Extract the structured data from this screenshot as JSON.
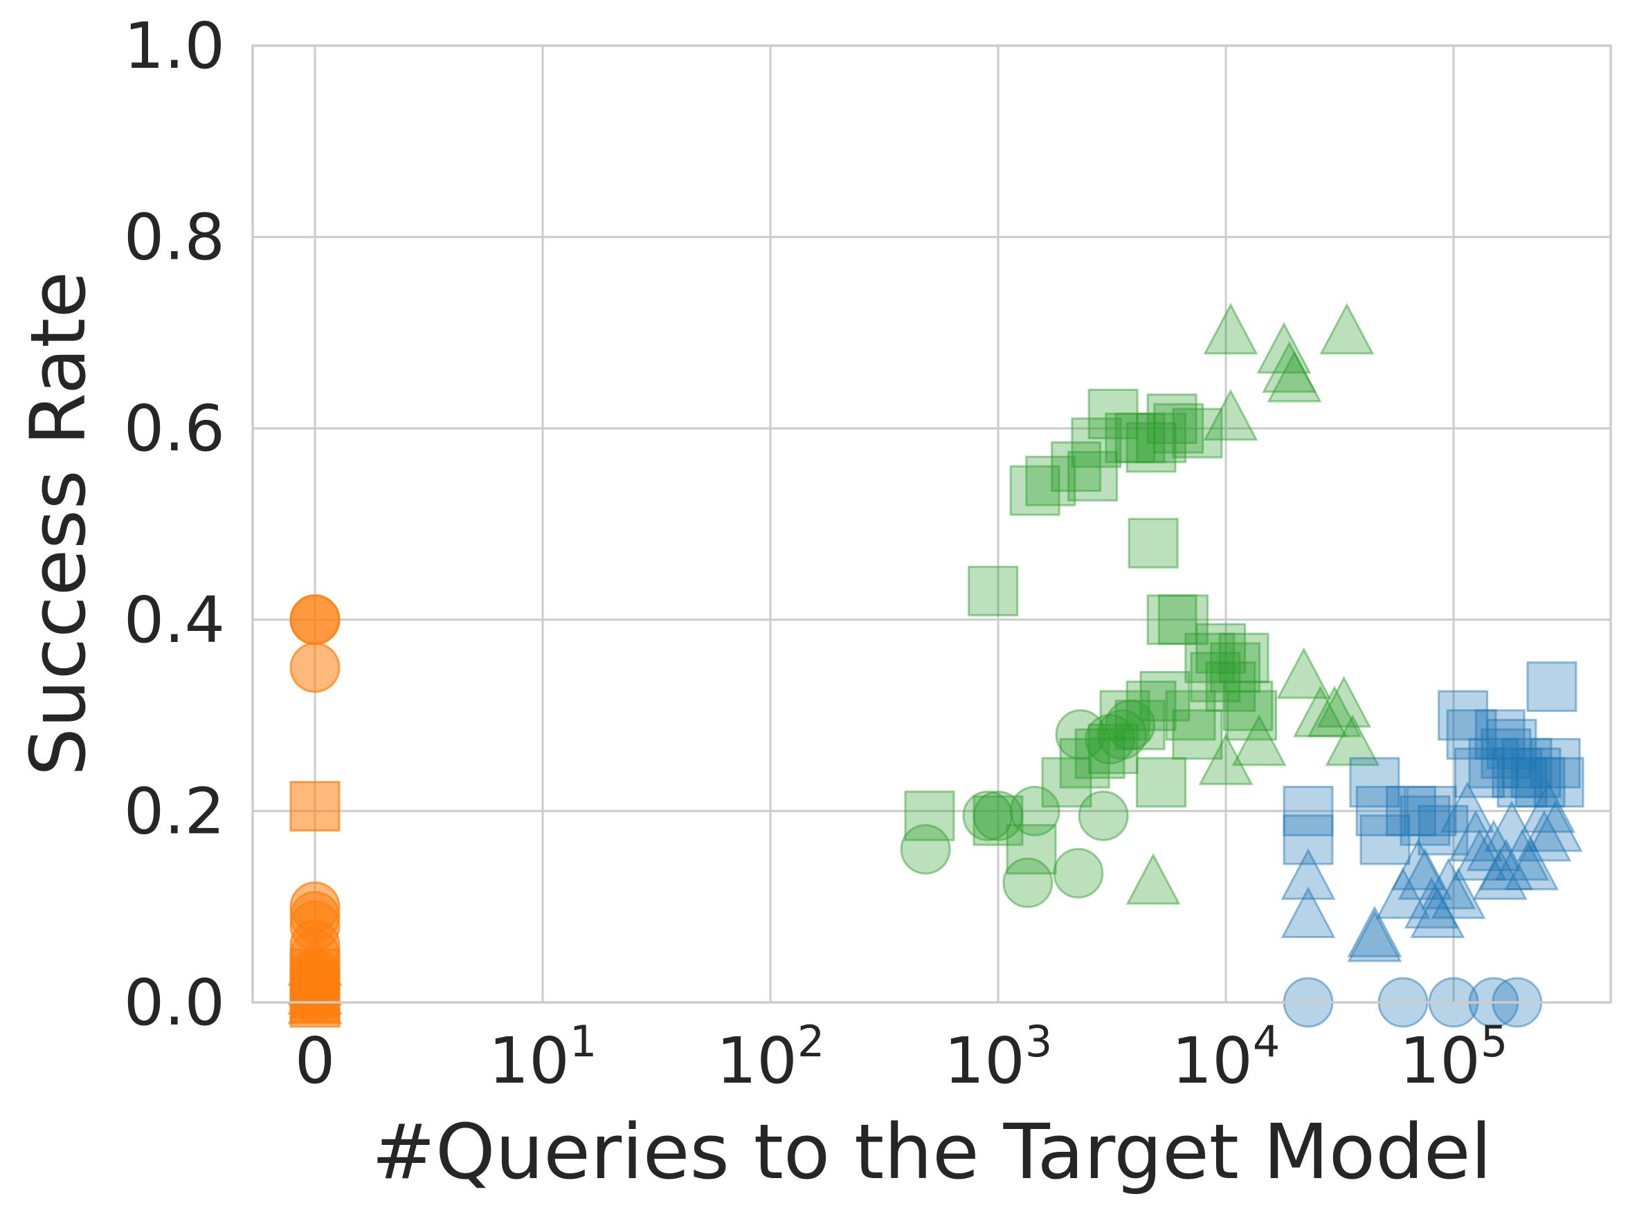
{
  "chart_data": {
    "type": "scatter",
    "title": "",
    "xlabel": "#Queries to the Target Model",
    "ylabel": "Success Rate",
    "x_scale": "symlog",
    "ylim": [
      0.0,
      1.0
    ],
    "grid": true,
    "x_ticks": [
      {
        "value": 0,
        "base": "0",
        "exp": ""
      },
      {
        "value": 10,
        "base": "10",
        "exp": "1"
      },
      {
        "value": 100,
        "base": "10",
        "exp": "2"
      },
      {
        "value": 1000,
        "base": "10",
        "exp": "3"
      },
      {
        "value": 10000,
        "base": "10",
        "exp": "4"
      },
      {
        "value": 100000,
        "base": "10",
        "exp": "5"
      }
    ],
    "y_ticks": [
      {
        "value": 0.0,
        "label": "0.0"
      },
      {
        "value": 0.2,
        "label": "0.2"
      },
      {
        "value": 0.4,
        "label": "0.4"
      },
      {
        "value": 0.6,
        "label": "0.6"
      },
      {
        "value": 0.8,
        "label": "0.8"
      },
      {
        "value": 1.0,
        "label": "1.0"
      }
    ],
    "colors": {
      "orange": "#ff7f0e",
      "green": "#2ca02c",
      "blue": "#1f77b4"
    },
    "series": [
      {
        "color": "orange",
        "marker": "circle",
        "points": [
          [
            0,
            0.4
          ],
          [
            0,
            0.4
          ],
          [
            0,
            0.35
          ],
          [
            0,
            0.1
          ],
          [
            0,
            0.09
          ],
          [
            0,
            0.08
          ],
          [
            0,
            0.06
          ],
          [
            0,
            0.05
          ],
          [
            0,
            0.03
          ],
          [
            0,
            0.02
          ],
          [
            0,
            0.01
          ],
          [
            0,
            0.005
          ]
        ]
      },
      {
        "color": "orange",
        "marker": "square",
        "points": [
          [
            0,
            0.205
          ],
          [
            0,
            0.03
          ],
          [
            0,
            0.02
          ],
          [
            0,
            0.01
          ],
          [
            0,
            0.005
          ],
          [
            0,
            0.0
          ]
        ]
      },
      {
        "color": "orange",
        "marker": "triangle",
        "points": [
          [
            0,
            0.04
          ],
          [
            0,
            0.02
          ],
          [
            0,
            0.01
          ],
          [
            0,
            0.0
          ]
        ]
      },
      {
        "color": "green",
        "marker": "circle",
        "points": [
          [
            480,
            0.16
          ],
          [
            900,
            0.195
          ],
          [
            1000,
            0.195
          ],
          [
            1450,
            0.2
          ],
          [
            1350,
            0.125
          ],
          [
            2250,
            0.135
          ],
          [
            2300,
            0.28
          ],
          [
            2900,
            0.195
          ],
          [
            3100,
            0.275
          ],
          [
            3500,
            0.28
          ],
          [
            3800,
            0.29
          ]
        ]
      },
      {
        "color": "green",
        "marker": "square",
        "points": [
          [
            950,
            0.43
          ],
          [
            1450,
            0.535
          ],
          [
            1700,
            0.545
          ],
          [
            2200,
            0.56
          ],
          [
            2600,
            0.55
          ],
          [
            2700,
            0.585
          ],
          [
            3200,
            0.615
          ],
          [
            3800,
            0.59
          ],
          [
            4200,
            0.59
          ],
          [
            4700,
            0.58
          ],
          [
            5200,
            0.59
          ],
          [
            5800,
            0.61
          ],
          [
            6200,
            0.6
          ],
          [
            7500,
            0.595
          ],
          [
            4800,
            0.48
          ],
          [
            500,
            0.195
          ],
          [
            1000,
            0.19
          ],
          [
            1400,
            0.16
          ],
          [
            2000,
            0.23
          ],
          [
            2400,
            0.25
          ],
          [
            2800,
            0.26
          ],
          [
            3200,
            0.265
          ],
          [
            3600,
            0.3
          ],
          [
            4200,
            0.29
          ],
          [
            4700,
            0.31
          ],
          [
            5200,
            0.23
          ],
          [
            5400,
            0.32
          ],
          [
            5800,
            0.4
          ],
          [
            6500,
            0.4
          ],
          [
            7000,
            0.3
          ],
          [
            7500,
            0.28
          ],
          [
            8500,
            0.36
          ],
          [
            9000,
            0.34
          ],
          [
            9500,
            0.37
          ],
          [
            10500,
            0.33
          ],
          [
            11000,
            0.35
          ],
          [
            12000,
            0.36
          ],
          [
            12500,
            0.31
          ],
          [
            13000,
            0.3
          ]
        ]
      },
      {
        "color": "green",
        "marker": "triangle",
        "points": [
          [
            10500,
            0.7
          ],
          [
            10500,
            0.61
          ],
          [
            18000,
            0.68
          ],
          [
            19000,
            0.66
          ],
          [
            20000,
            0.65
          ],
          [
            34000,
            0.7
          ],
          [
            10000,
            0.25
          ],
          [
            14000,
            0.27
          ],
          [
            22000,
            0.34
          ],
          [
            26000,
            0.3
          ],
          [
            30000,
            0.3
          ],
          [
            33000,
            0.31
          ],
          [
            36000,
            0.27
          ],
          [
            4800,
            0.125
          ]
        ]
      },
      {
        "color": "blue",
        "marker": "circle",
        "points": [
          [
            23000,
            0.0
          ],
          [
            60000,
            0.0
          ],
          [
            100000,
            0.0
          ],
          [
            150000,
            0.0
          ],
          [
            190000,
            0.0
          ]
        ]
      },
      {
        "color": "blue",
        "marker": "square",
        "points": [
          [
            23000,
            0.2
          ],
          [
            23000,
            0.17
          ],
          [
            45000,
            0.23
          ],
          [
            48000,
            0.2
          ],
          [
            50000,
            0.17
          ],
          [
            65000,
            0.2
          ],
          [
            75000,
            0.19
          ],
          [
            80000,
            0.2
          ],
          [
            90000,
            0.18
          ],
          [
            110000,
            0.3
          ],
          [
            120000,
            0.28
          ],
          [
            130000,
            0.24
          ],
          [
            150000,
            0.25
          ],
          [
            160000,
            0.28
          ],
          [
            170000,
            0.26
          ],
          [
            180000,
            0.27
          ],
          [
            190000,
            0.24
          ],
          [
            200000,
            0.23
          ],
          [
            210000,
            0.25
          ],
          [
            230000,
            0.24
          ],
          [
            240000,
            0.23
          ],
          [
            270000,
            0.33
          ],
          [
            280000,
            0.25
          ],
          [
            290000,
            0.23
          ]
        ]
      },
      {
        "color": "blue",
        "marker": "triangle",
        "points": [
          [
            23000,
            0.13
          ],
          [
            23000,
            0.09
          ],
          [
            45000,
            0.07
          ],
          [
            45000,
            0.065
          ],
          [
            60000,
            0.11
          ],
          [
            70000,
            0.14
          ],
          [
            75000,
            0.13
          ],
          [
            80000,
            0.1
          ],
          [
            85000,
            0.09
          ],
          [
            95000,
            0.12
          ],
          [
            105000,
            0.11
          ],
          [
            115000,
            0.2
          ],
          [
            125000,
            0.17
          ],
          [
            130000,
            0.15
          ],
          [
            150000,
            0.16
          ],
          [
            160000,
            0.13
          ],
          [
            170000,
            0.14
          ],
          [
            180000,
            0.18
          ],
          [
            200000,
            0.15
          ],
          [
            220000,
            0.14
          ],
          [
            250000,
            0.17
          ],
          [
            260000,
            0.2
          ],
          [
            280000,
            0.18
          ]
        ]
      }
    ]
  }
}
